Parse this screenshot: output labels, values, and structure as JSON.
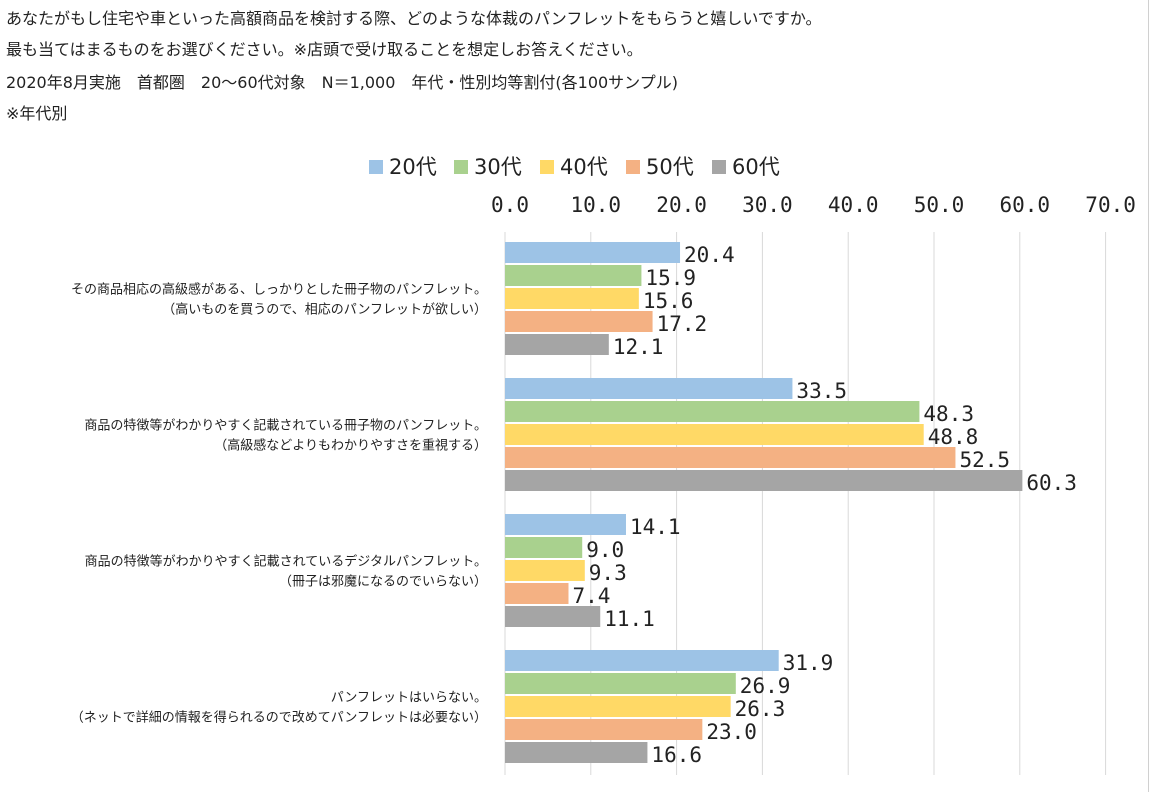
{
  "header": {
    "lines": [
      "あなたがもし住宅や車といった高額商品を検討する際、どのような体裁のパンフレットをもらうと嬉しいですか。",
      "最も当てはまるものをお選びください。※店頭で受け取ることを想定しお答えください。",
      "2020年8月実施　首都圏　20～60代対象　N＝1,000　年代・性別均等割付(各100サンプル)",
      "※年代別"
    ]
  },
  "chart_data": {
    "type": "bar",
    "orientation": "horizontal",
    "title": "",
    "categories": [
      [
        "その商品相応の高級感がある、しっかりとした冊子物のパンフレット。",
        "（高いものを買うので、相応のパンフレットが欲しい）"
      ],
      [
        "商品の特徴等がわかりやすく記載されている冊子物のパンフレット。",
        "（高級感などよりもわかりやすさを重視する）"
      ],
      [
        "商品の特徴等がわかりやすく記載されているデジタルパンフレット。",
        "（冊子は邪魔になるのでいらない）"
      ],
      [
        "パンフレットはいらない。",
        "（ネットで詳細の情報を得られるので改めてパンフレットは必要ない）"
      ]
    ],
    "series": [
      {
        "name": "20代",
        "color": "#9dc3e6",
        "values": [
          20.4,
          33.5,
          14.1,
          31.9
        ]
      },
      {
        "name": "30代",
        "color": "#a9d18e",
        "values": [
          15.9,
          48.3,
          9.0,
          26.9
        ]
      },
      {
        "name": "40代",
        "color": "#ffd966",
        "values": [
          15.6,
          48.8,
          9.3,
          26.3
        ]
      },
      {
        "name": "50代",
        "color": "#f4b183",
        "values": [
          17.2,
          52.5,
          7.4,
          23.0
        ]
      },
      {
        "name": "60代",
        "color": "#a5a5a5",
        "values": [
          12.1,
          60.3,
          11.1,
          16.6
        ]
      }
    ],
    "xlim": [
      0,
      70
    ],
    "ticks": [
      "0.0",
      "10.0",
      "20.0",
      "30.0",
      "40.0",
      "50.0",
      "60.0",
      "70.0"
    ],
    "axis_position": "top",
    "legend_position": "top",
    "grid": true
  }
}
